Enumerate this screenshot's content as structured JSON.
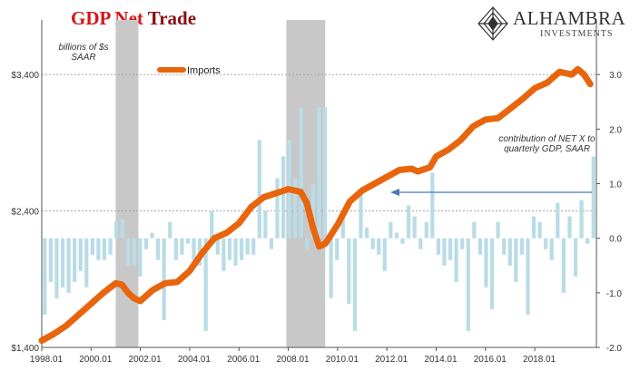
{
  "chart_data": {
    "type": "bar+line",
    "title_part1": "GDP Net",
    "title_part2": "Trade",
    "left_axis_note": [
      "billions of $s",
      "SAAR"
    ],
    "right_axis_note": [
      "contribution of NET X to",
      "quarterly GDP, SAAR"
    ],
    "legend": [
      {
        "label": "Imports",
        "color": "#e8650d"
      }
    ],
    "left_axis": {
      "min": 1400,
      "max": 3800,
      "ticks": [
        1400,
        2400,
        3400
      ],
      "tick_labels": [
        "$1,400",
        "$2,400",
        "$3,400"
      ]
    },
    "right_axis": {
      "min": -2.0,
      "max": 4.0,
      "ticks": [
        -2,
        -1,
        0,
        1,
        2,
        3
      ],
      "tick_labels": [
        "-2.0",
        "-1.0",
        "0.0",
        "1.0",
        "2.0",
        "3.0"
      ]
    },
    "x_axis": {
      "start": 1998.0,
      "end": 2020.5,
      "ticks": [
        1998,
        2000,
        2002,
        2004,
        2006,
        2008,
        2010,
        2012,
        2014,
        2016,
        2018
      ],
      "tick_labels": [
        "1998.01",
        "2000.01",
        "2002.01",
        "2004.01",
        "2006.01",
        "2008.01",
        "2010.01",
        "2012.01",
        "2014.01",
        "2016.01",
        "2018.01"
      ]
    },
    "recessions": [
      [
        2001.0,
        2001.92
      ],
      [
        2007.92,
        2009.5
      ]
    ],
    "gridlines_left": [
      2400,
      3400
    ],
    "arrow_label_target": "right_axis",
    "series": [
      {
        "name": "Imports",
        "kind": "line",
        "axis": "left",
        "color": "#e8650d",
        "points": [
          [
            1998.0,
            1450
          ],
          [
            1998.5,
            1500
          ],
          [
            1999.0,
            1560
          ],
          [
            1999.5,
            1640
          ],
          [
            2000.0,
            1720
          ],
          [
            2000.5,
            1800
          ],
          [
            2001.0,
            1870
          ],
          [
            2001.25,
            1860
          ],
          [
            2001.5,
            1800
          ],
          [
            2001.75,
            1760
          ],
          [
            2002.0,
            1740
          ],
          [
            2002.5,
            1820
          ],
          [
            2003.0,
            1870
          ],
          [
            2003.5,
            1880
          ],
          [
            2004.0,
            1960
          ],
          [
            2004.5,
            2090
          ],
          [
            2005.0,
            2200
          ],
          [
            2005.5,
            2240
          ],
          [
            2006.0,
            2310
          ],
          [
            2006.5,
            2430
          ],
          [
            2007.0,
            2500
          ],
          [
            2007.5,
            2530
          ],
          [
            2007.75,
            2545
          ],
          [
            2008.0,
            2560
          ],
          [
            2008.5,
            2540
          ],
          [
            2008.75,
            2460
          ],
          [
            2009.0,
            2280
          ],
          [
            2009.25,
            2140
          ],
          [
            2009.5,
            2160
          ],
          [
            2010.0,
            2300
          ],
          [
            2010.5,
            2470
          ],
          [
            2011.0,
            2550
          ],
          [
            2011.5,
            2600
          ],
          [
            2012.0,
            2650
          ],
          [
            2012.5,
            2700
          ],
          [
            2013.0,
            2710
          ],
          [
            2013.25,
            2690
          ],
          [
            2013.75,
            2720
          ],
          [
            2014.0,
            2800
          ],
          [
            2014.5,
            2850
          ],
          [
            2015.0,
            2920
          ],
          [
            2015.5,
            3020
          ],
          [
            2016.0,
            3070
          ],
          [
            2016.5,
            3080
          ],
          [
            2017.0,
            3150
          ],
          [
            2017.5,
            3220
          ],
          [
            2018.0,
            3300
          ],
          [
            2018.5,
            3340
          ],
          [
            2019.0,
            3420
          ],
          [
            2019.5,
            3400
          ],
          [
            2019.75,
            3440
          ],
          [
            2020.0,
            3400
          ],
          [
            2020.25,
            3330
          ]
        ]
      },
      {
        "name": "contribution of NET X to quarterly GDP, SAAR",
        "kind": "bar",
        "axis": "right",
        "color": "#b9dce6",
        "values": [
          -1.4,
          -0.8,
          -1.1,
          -0.9,
          -1.0,
          -0.8,
          -0.6,
          -0.9,
          -0.3,
          -0.4,
          -0.4,
          -0.3,
          0.3,
          0.35,
          -0.5,
          -0.5,
          -0.7,
          -0.2,
          0.1,
          -0.4,
          -1.5,
          0.3,
          -0.4,
          -0.3,
          -0.1,
          -0.4,
          -0.5,
          -1.7,
          0.5,
          -0.3,
          -0.6,
          -0.4,
          -0.5,
          -0.4,
          -0.3,
          -0.3,
          1.8,
          0.5,
          -0.2,
          1.1,
          1.5,
          1.8,
          1.1,
          2.4,
          -0.2,
          1.0,
          2.4,
          2.4,
          -1.1,
          -0.4,
          0.5,
          -1.2,
          -1.7,
          0.9,
          0.2,
          -0.2,
          -0.3,
          -0.6,
          0.3,
          0.1,
          -0.1,
          0.6,
          0.4,
          -0.2,
          0.3,
          1.2,
          -0.3,
          -0.5,
          -0.4,
          -0.8,
          -0.2,
          -1.7,
          0.3,
          -0.3,
          -0.9,
          -1.3,
          0.3,
          -0.3,
          -0.5,
          -0.8,
          -0.3,
          -1.4,
          0.4,
          0.3,
          -0.2,
          -0.4,
          0.65,
          -1.0,
          0.4,
          -0.7,
          0.7,
          -0.1,
          1.5
        ]
      }
    ]
  }
}
